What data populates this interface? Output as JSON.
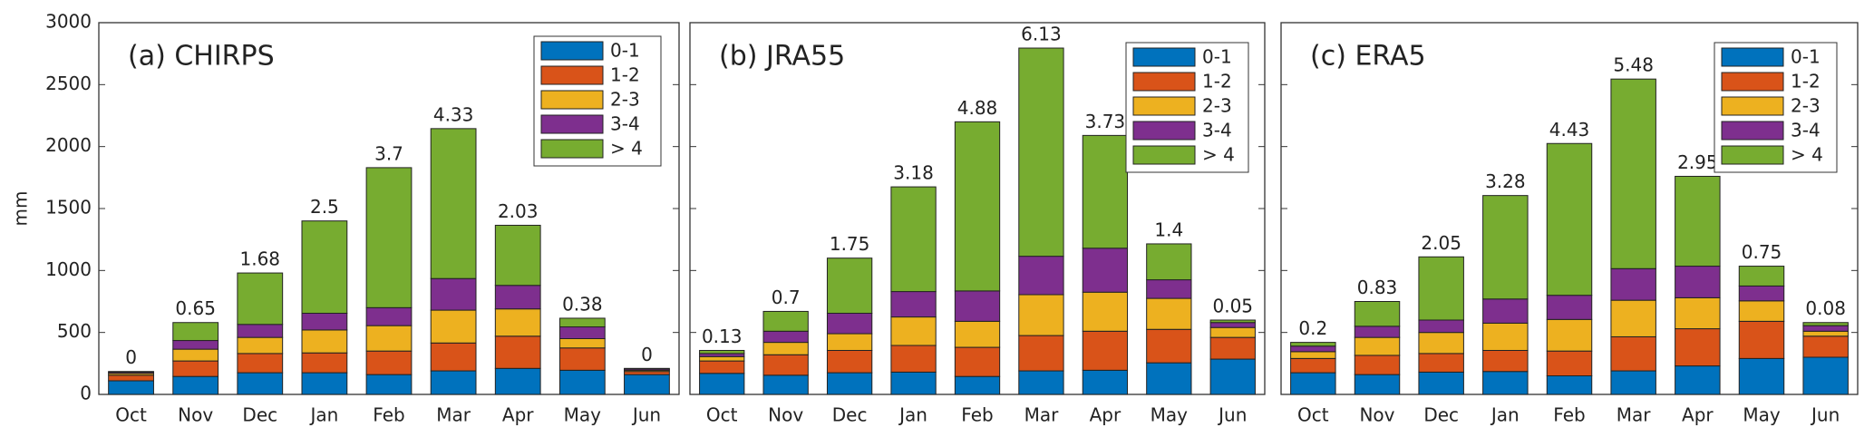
{
  "chart_data": [
    {
      "type": "stacked-bar",
      "title": "(a) CHIRPS",
      "ylabel": "mm",
      "categories": [
        "Oct",
        "Nov",
        "Dec",
        "Jan",
        "Feb",
        "Mar",
        "Apr",
        "May",
        "Jun"
      ],
      "ylim": [
        0,
        3000
      ],
      "yticks": [
        0,
        500,
        1000,
        1500,
        2000,
        2500,
        3000
      ],
      "series": [
        {
          "name": "0-1",
          "color": "#0072BD",
          "values": [
            110,
            145,
            175,
            175,
            160,
            190,
            210,
            195,
            160
          ]
        },
        {
          "name": "1-2",
          "color": "#D95319",
          "values": [
            45,
            125,
            155,
            160,
            190,
            225,
            260,
            180,
            25
          ]
        },
        {
          "name": "2-3",
          "color": "#EDB120",
          "values": [
            15,
            95,
            130,
            185,
            205,
            265,
            220,
            75,
            10
          ]
        },
        {
          "name": "3-4",
          "color": "#7E2F8E",
          "values": [
            10,
            70,
            105,
            135,
            145,
            255,
            190,
            95,
            10
          ]
        },
        {
          "name": "> 4",
          "color": "#77AC30",
          "values": [
            5,
            145,
            415,
            745,
            1130,
            1210,
            485,
            70,
            5
          ]
        }
      ],
      "top_labels": [
        0,
        0.65,
        1.68,
        2.5,
        3.7,
        4.33,
        2.03,
        0.38,
        0
      ]
    },
    {
      "type": "stacked-bar",
      "title": "(b) JRA55",
      "categories": [
        "Oct",
        "Nov",
        "Dec",
        "Jan",
        "Feb",
        "Mar",
        "Apr",
        "May",
        "Jun"
      ],
      "ylim": [
        0,
        3000
      ],
      "yticks": [
        0,
        500,
        1000,
        1500,
        2000,
        2500,
        3000
      ],
      "series": [
        {
          "name": "0-1",
          "color": "#0072BD",
          "values": [
            170,
            155,
            175,
            180,
            145,
            190,
            195,
            255,
            285
          ]
        },
        {
          "name": "1-2",
          "color": "#D95319",
          "values": [
            100,
            165,
            180,
            215,
            235,
            285,
            315,
            270,
            175
          ]
        },
        {
          "name": "2-3",
          "color": "#EDB120",
          "values": [
            35,
            100,
            135,
            230,
            210,
            330,
            315,
            250,
            80
          ]
        },
        {
          "name": "3-4",
          "color": "#7E2F8E",
          "values": [
            25,
            90,
            165,
            205,
            245,
            310,
            355,
            150,
            40
          ]
        },
        {
          "name": "> 4",
          "color": "#77AC30",
          "values": [
            25,
            160,
            445,
            845,
            1365,
            1680,
            910,
            290,
            20
          ]
        }
      ],
      "top_labels": [
        0.13,
        0.7,
        1.75,
        3.18,
        4.88,
        6.13,
        3.73,
        1.4,
        0.05
      ]
    },
    {
      "type": "stacked-bar",
      "title": "(c) ERA5",
      "categories": [
        "Oct",
        "Nov",
        "Dec",
        "Jan",
        "Feb",
        "Mar",
        "Apr",
        "May",
        "Jun"
      ],
      "ylim": [
        0,
        3000
      ],
      "yticks": [
        0,
        500,
        1000,
        1500,
        2000,
        2500,
        3000
      ],
      "series": [
        {
          "name": "0-1",
          "color": "#0072BD",
          "values": [
            175,
            160,
            180,
            185,
            150,
            190,
            230,
            290,
            300
          ]
        },
        {
          "name": "1-2",
          "color": "#D95319",
          "values": [
            115,
            155,
            150,
            170,
            200,
            275,
            300,
            300,
            170
          ]
        },
        {
          "name": "2-3",
          "color": "#EDB120",
          "values": [
            55,
            145,
            170,
            220,
            255,
            295,
            250,
            165,
            40
          ]
        },
        {
          "name": "3-4",
          "color": "#7E2F8E",
          "values": [
            45,
            90,
            100,
            195,
            195,
            255,
            255,
            120,
            45
          ]
        },
        {
          "name": "> 4",
          "color": "#77AC30",
          "values": [
            30,
            200,
            510,
            835,
            1225,
            1530,
            725,
            160,
            25
          ]
        }
      ],
      "top_labels": [
        0.2,
        0.83,
        2.05,
        3.28,
        4.43,
        5.48,
        2.95,
        0.75,
        0.08
      ]
    }
  ]
}
